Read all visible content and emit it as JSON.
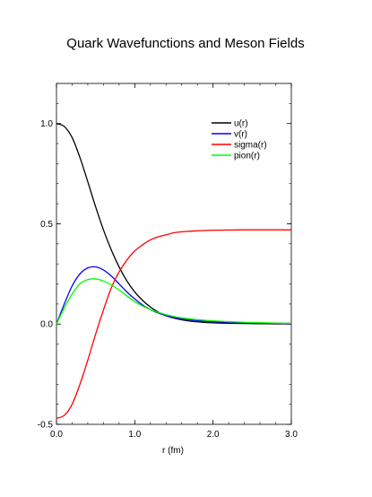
{
  "chart_data": {
    "type": "line",
    "title": "Quark Wavefunctions and Meson Fields",
    "xlabel": "r  (fm)",
    "ylabel": "",
    "xlim": [
      0.0,
      3.0
    ],
    "ylim": [
      -0.5,
      1.2
    ],
    "xticks": [
      "0.0",
      "1.0",
      "2.0",
      "3.0"
    ],
    "yticks": [
      "-0.5",
      "0.0",
      "0.5",
      "1.0"
    ],
    "legend_position": "top-right",
    "x": [
      0.0,
      0.1,
      0.2,
      0.3,
      0.4,
      0.5,
      0.6,
      0.7,
      0.8,
      0.9,
      1.0,
      1.1,
      1.2,
      1.3,
      1.4,
      1.5,
      1.6,
      1.7,
      1.8,
      1.9,
      2.0,
      2.2,
      2.4,
      2.6,
      2.8,
      3.0
    ],
    "series": [
      {
        "name": "u(r)",
        "color": "#000000",
        "values": [
          1.0,
          0.985,
          0.93,
          0.83,
          0.71,
          0.585,
          0.47,
          0.37,
          0.285,
          0.215,
          0.16,
          0.118,
          0.085,
          0.06,
          0.042,
          0.03,
          0.021,
          0.015,
          0.011,
          0.008,
          0.006,
          0.004,
          0.003,
          0.002,
          0.001,
          0.001
        ]
      },
      {
        "name": "v(r)",
        "color": "#0000ff",
        "values": [
          0.0,
          0.1,
          0.19,
          0.25,
          0.28,
          0.285,
          0.27,
          0.24,
          0.2,
          0.16,
          0.125,
          0.095,
          0.072,
          0.055,
          0.042,
          0.033,
          0.026,
          0.021,
          0.017,
          0.014,
          0.012,
          0.009,
          0.007,
          0.005,
          0.004,
          0.003
        ]
      },
      {
        "name": "sigma(r)",
        "color": "#ff0000",
        "values": [
          -0.47,
          -0.455,
          -0.4,
          -0.3,
          -0.18,
          -0.05,
          0.07,
          0.18,
          0.26,
          0.32,
          0.365,
          0.395,
          0.42,
          0.435,
          0.445,
          0.455,
          0.46,
          0.463,
          0.465,
          0.467,
          0.468,
          0.469,
          0.47,
          0.47,
          0.47,
          0.47
        ]
      },
      {
        "name": "pion(r)",
        "color": "#00ff00",
        "values": [
          0.0,
          0.08,
          0.15,
          0.2,
          0.222,
          0.225,
          0.215,
          0.195,
          0.17,
          0.14,
          0.112,
          0.09,
          0.072,
          0.058,
          0.047,
          0.038,
          0.031,
          0.026,
          0.022,
          0.019,
          0.016,
          0.012,
          0.009,
          0.007,
          0.005,
          0.004
        ]
      }
    ]
  }
}
